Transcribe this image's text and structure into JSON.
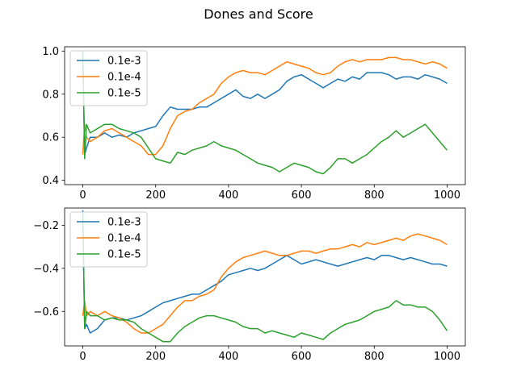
{
  "figure": {
    "title": "Dones and Score"
  },
  "chart_data": [
    {
      "type": "line",
      "title": "",
      "xlabel": "",
      "ylabel": "",
      "xlim": [
        -50,
        1050
      ],
      "ylim": [
        0.38,
        1.02
      ],
      "xticks": [
        0,
        200,
        400,
        600,
        800,
        1000
      ],
      "xtick_labels": [
        "0",
        "200",
        "400",
        "600",
        "800",
        "1000"
      ],
      "yticks": [
        0.4,
        0.6,
        0.8,
        1.0
      ],
      "ytick_labels": [
        "0.4",
        "0.6",
        "0.8",
        "1.0"
      ],
      "grid": false,
      "legend": "top-left",
      "x": [
        0,
        5,
        10,
        20,
        40,
        60,
        80,
        100,
        120,
        140,
        160,
        180,
        200,
        220,
        240,
        260,
        280,
        300,
        320,
        340,
        360,
        380,
        400,
        420,
        440,
        460,
        480,
        500,
        520,
        540,
        560,
        580,
        600,
        620,
        640,
        660,
        680,
        700,
        720,
        740,
        760,
        780,
        800,
        820,
        840,
        860,
        880,
        900,
        920,
        940,
        960,
        980,
        1000
      ],
      "series": [
        {
          "name": "0.1e-3",
          "color": "#1f77b4",
          "values": [
            1.0,
            0.52,
            0.55,
            0.6,
            0.6,
            0.62,
            0.6,
            0.61,
            0.6,
            0.62,
            0.63,
            0.64,
            0.65,
            0.7,
            0.74,
            0.73,
            0.73,
            0.73,
            0.74,
            0.74,
            0.76,
            0.78,
            0.8,
            0.82,
            0.79,
            0.78,
            0.8,
            0.78,
            0.8,
            0.82,
            0.86,
            0.88,
            0.89,
            0.87,
            0.85,
            0.83,
            0.85,
            0.87,
            0.86,
            0.88,
            0.87,
            0.9,
            0.9,
            0.9,
            0.89,
            0.87,
            0.88,
            0.88,
            0.87,
            0.89,
            0.88,
            0.87,
            0.85
          ]
        },
        {
          "name": "0.1e-4",
          "color": "#ff7f0e",
          "values": [
            0.52,
            0.66,
            0.6,
            0.58,
            0.6,
            0.63,
            0.64,
            0.62,
            0.6,
            0.58,
            0.56,
            0.52,
            0.52,
            0.56,
            0.64,
            0.7,
            0.72,
            0.73,
            0.76,
            0.78,
            0.8,
            0.85,
            0.88,
            0.9,
            0.91,
            0.9,
            0.9,
            0.89,
            0.91,
            0.93,
            0.95,
            0.94,
            0.93,
            0.92,
            0.9,
            0.89,
            0.9,
            0.93,
            0.95,
            0.96,
            0.95,
            0.96,
            0.96,
            0.96,
            0.97,
            0.97,
            0.96,
            0.96,
            0.95,
            0.94,
            0.95,
            0.94,
            0.92
          ]
        },
        {
          "name": "0.1e-5",
          "color": "#2ca02c",
          "values": [
            1.0,
            0.5,
            0.66,
            0.62,
            0.64,
            0.66,
            0.66,
            0.64,
            0.63,
            0.62,
            0.6,
            0.55,
            0.5,
            0.49,
            0.48,
            0.53,
            0.52,
            0.54,
            0.55,
            0.56,
            0.58,
            0.56,
            0.55,
            0.54,
            0.52,
            0.5,
            0.48,
            0.47,
            0.46,
            0.44,
            0.46,
            0.48,
            0.47,
            0.46,
            0.44,
            0.43,
            0.46,
            0.5,
            0.5,
            0.48,
            0.5,
            0.52,
            0.55,
            0.58,
            0.6,
            0.63,
            0.6,
            0.62,
            0.64,
            0.66,
            0.62,
            0.58,
            0.54
          ]
        }
      ]
    },
    {
      "type": "line",
      "title": "",
      "xlabel": "",
      "ylabel": "",
      "xlim": [
        -50,
        1050
      ],
      "ylim": [
        -0.76,
        -0.12
      ],
      "xticks": [
        0,
        200,
        400,
        600,
        800,
        1000
      ],
      "xtick_labels": [
        "0",
        "200",
        "400",
        "600",
        "800",
        "1000"
      ],
      "yticks": [
        -0.6,
        -0.4,
        -0.2
      ],
      "ytick_labels": [
        "−0.6",
        "−0.4",
        "−0.2"
      ],
      "grid": false,
      "legend": "top-left",
      "x": [
        0,
        5,
        10,
        20,
        40,
        60,
        80,
        100,
        120,
        140,
        160,
        180,
        200,
        220,
        240,
        260,
        280,
        300,
        320,
        340,
        360,
        380,
        400,
        420,
        440,
        460,
        480,
        500,
        520,
        540,
        560,
        580,
        600,
        620,
        640,
        660,
        680,
        700,
        720,
        740,
        760,
        780,
        800,
        820,
        840,
        860,
        880,
        900,
        920,
        940,
        960,
        980,
        1000
      ],
      "series": [
        {
          "name": "0.1e-3",
          "color": "#1f77b4",
          "values": [
            -0.13,
            -0.68,
            -0.66,
            -0.7,
            -0.68,
            -0.64,
            -0.63,
            -0.63,
            -0.64,
            -0.63,
            -0.62,
            -0.6,
            -0.58,
            -0.56,
            -0.55,
            -0.54,
            -0.53,
            -0.52,
            -0.52,
            -0.5,
            -0.48,
            -0.46,
            -0.43,
            -0.42,
            -0.41,
            -0.4,
            -0.41,
            -0.4,
            -0.38,
            -0.36,
            -0.34,
            -0.36,
            -0.38,
            -0.37,
            -0.36,
            -0.37,
            -0.38,
            -0.39,
            -0.38,
            -0.37,
            -0.36,
            -0.35,
            -0.36,
            -0.34,
            -0.34,
            -0.35,
            -0.36,
            -0.35,
            -0.36,
            -0.37,
            -0.38,
            -0.38,
            -0.39
          ]
        },
        {
          "name": "0.1e-4",
          "color": "#ff7f0e",
          "values": [
            -0.62,
            -0.55,
            -0.62,
            -0.6,
            -0.62,
            -0.6,
            -0.62,
            -0.63,
            -0.65,
            -0.68,
            -0.7,
            -0.7,
            -0.68,
            -0.66,
            -0.62,
            -0.58,
            -0.55,
            -0.55,
            -0.53,
            -0.52,
            -0.5,
            -0.44,
            -0.4,
            -0.37,
            -0.35,
            -0.34,
            -0.33,
            -0.32,
            -0.33,
            -0.34,
            -0.34,
            -0.33,
            -0.32,
            -0.32,
            -0.33,
            -0.32,
            -0.31,
            -0.31,
            -0.3,
            -0.29,
            -0.3,
            -0.28,
            -0.29,
            -0.28,
            -0.27,
            -0.26,
            -0.27,
            -0.25,
            -0.24,
            -0.25,
            -0.26,
            -0.27,
            -0.29
          ]
        },
        {
          "name": "0.1e-5",
          "color": "#2ca02c",
          "values": [
            -0.15,
            -0.68,
            -0.6,
            -0.62,
            -0.62,
            -0.64,
            -0.63,
            -0.64,
            -0.64,
            -0.65,
            -0.68,
            -0.7,
            -0.72,
            -0.74,
            -0.74,
            -0.7,
            -0.67,
            -0.65,
            -0.63,
            -0.62,
            -0.62,
            -0.63,
            -0.64,
            -0.65,
            -0.67,
            -0.68,
            -0.68,
            -0.7,
            -0.69,
            -0.7,
            -0.71,
            -0.72,
            -0.7,
            -0.71,
            -0.72,
            -0.73,
            -0.7,
            -0.68,
            -0.66,
            -0.65,
            -0.64,
            -0.62,
            -0.6,
            -0.59,
            -0.58,
            -0.55,
            -0.57,
            -0.57,
            -0.58,
            -0.58,
            -0.6,
            -0.64,
            -0.69
          ]
        }
      ]
    }
  ]
}
